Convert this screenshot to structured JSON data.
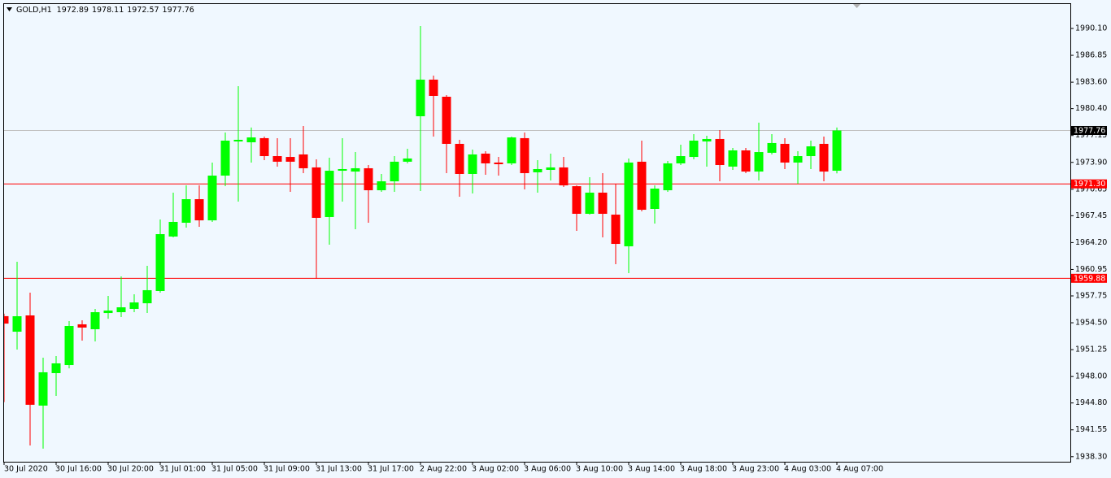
{
  "chart_data": {
    "type": "candlestick",
    "symbol": "GOLD,H1",
    "header_values": [
      1972.89,
      1978.11,
      1972.57,
      1977.76
    ],
    "categories": [
      "30 Jul 2020",
      null,
      null,
      null,
      "30 Jul 16:00",
      null,
      null,
      null,
      "30 Jul 20:00",
      null,
      null,
      null,
      "31 Jul 01:00",
      null,
      null,
      null,
      "31 Jul 05:00",
      null,
      null,
      null,
      "31 Jul 09:00",
      null,
      null,
      null,
      "31 Jul 13:00",
      null,
      null,
      null,
      "31 Jul 17:00",
      null,
      null,
      null,
      "2 Aug 22:00",
      null,
      null,
      null,
      "3 Aug 02:00",
      null,
      null,
      null,
      "3 Aug 06:00",
      null,
      null,
      null,
      "3 Aug 10:00",
      null,
      null,
      null,
      "3 Aug 14:00",
      null,
      null,
      null,
      "3 Aug 18:00",
      null,
      null,
      null,
      "3 Aug 23:00",
      null,
      null,
      null,
      "4 Aug 03:00",
      null,
      null,
      null,
      "4 Aug 07:00"
    ],
    "open": [
      1955.3,
      1953.42,
      1955.39,
      1944.48,
      1948.41,
      1949.39,
      1954.31,
      1953.72,
      1955.68,
      1955.78,
      1956.18,
      1956.86,
      1958.34,
      1964.93,
      1966.6,
      1969.45,
      1966.89,
      1972.3,
      1976.43,
      1976.33,
      1976.83,
      1974.66,
      1974.56,
      1974.86,
      1973.29,
      1967.29,
      1972.89,
      1972.79,
      1973.19,
      1970.53,
      1971.61,
      1973.98,
      1979.48,
      1983.91,
      1981.84,
      1976.14,
      1972.5,
      1974.96,
      1973.88,
      1973.78,
      1976.83,
      1972.7,
      1972.99,
      1973.29,
      1971.02,
      1967.68,
      1970.24,
      1967.58,
      1963.75,
      1973.98,
      1968.27,
      1970.53,
      1973.78,
      1974.56,
      1976.43,
      1976.73,
      1973.39,
      1975.35,
      1972.79,
      1975.06,
      1976.14,
      1973.88,
      1974.66,
      1976.14,
      1972.89
    ],
    "high": [
      1955.6,
      1961.88,
      1958.14,
      1950.28,
      1950.47,
      1954.7,
      1954.8,
      1956.18,
      1957.75,
      1960.11,
      1957.95,
      1961.39,
      1966.99,
      1970.24,
      1971.12,
      1971.12,
      1973.88,
      1977.51,
      1983.12,
      1978.11,
      1977.02,
      1976.83,
      1976.83,
      1978.3,
      1974.27,
      1974.47,
      1976.83,
      1975.15,
      1973.58,
      1972.5,
      1974.66,
      1975.55,
      1990.4,
      1984.4,
      1982.04,
      1976.63,
      1975.45,
      1975.25,
      1974.56,
      1977.02,
      1977.51,
      1974.17,
      1974.96,
      1974.56,
      1971.12,
      1972.11,
      1972.6,
      1971.32,
      1974.37,
      1976.53,
      1971.12,
      1974.07,
      1976.04,
      1977.32,
      1977.12,
      1977.81,
      1975.65,
      1975.65,
      1978.7,
      1977.32,
      1976.83,
      1975.25,
      1976.53,
      1977.02,
      1978.11
    ],
    "low": [
      1944.9,
      1951.26,
      1939.66,
      1939.27,
      1945.66,
      1948.99,
      1952.34,
      1952.24,
      1954.99,
      1955.19,
      1955.78,
      1955.68,
      1958.14,
      1964.83,
      1966.01,
      1966.11,
      1966.7,
      1971.02,
      1969.16,
      1973.88,
      1974.17,
      1973.39,
      1970.34,
      1972.6,
      1959.82,
      1963.94,
      1969.16,
      1965.81,
      1966.6,
      1970.34,
      1970.34,
      1973.78,
      1970.44,
      1977.02,
      1972.6,
      1969.75,
      1970.14,
      1972.4,
      1972.3,
      1973.58,
      1970.63,
      1970.24,
      1971.71,
      1970.93,
      1965.62,
      1967.58,
      1964.83,
      1961.58,
      1960.5,
      1967.98,
      1966.5,
      1970.34,
      1973.58,
      1974.27,
      1973.39,
      1971.61,
      1972.99,
      1972.6,
      1971.71,
      1974.86,
      1973.09,
      1971.32,
      1973.09,
      1971.61,
      1972.57
    ],
    "close": [
      1954.4,
      1955.29,
      1944.58,
      1948.51,
      1949.59,
      1954.11,
      1953.92,
      1955.78,
      1955.98,
      1956.37,
      1956.96,
      1958.44,
      1965.22,
      1966.7,
      1969.45,
      1966.89,
      1972.3,
      1976.53,
      1976.63,
      1976.92,
      1974.66,
      1973.98,
      1973.98,
      1973.19,
      1967.19,
      1972.89,
      1973.09,
      1973.19,
      1970.53,
      1971.61,
      1973.98,
      1974.37,
      1983.91,
      1981.94,
      1976.14,
      1972.5,
      1974.86,
      1973.78,
      1973.68,
      1976.92,
      1972.6,
      1973.09,
      1973.29,
      1971.12,
      1967.68,
      1970.24,
      1967.68,
      1964.04,
      1973.88,
      1968.17,
      1970.73,
      1973.78,
      1974.66,
      1976.53,
      1976.73,
      1973.58,
      1975.35,
      1972.79,
      1975.15,
      1976.24,
      1973.88,
      1974.66,
      1975.84,
      1972.79,
      1977.76
    ],
    "up_color": "#00ff00",
    "down_color": "#ff0000",
    "ylim": [
      1937.69,
      1993.05
    ],
    "yticks": [
      {
        "value": 1990.1,
        "label": "1990.10"
      },
      1986.85,
      {
        "value": 1983.6,
        "label": "1983.60"
      },
      {
        "value": 1980.4,
        "label": "1980.40"
      },
      1977.15,
      {
        "value": 1973.9,
        "label": "1973.90"
      },
      1970.65,
      1967.45,
      {
        "value": 1964.2,
        "label": "1964.20"
      },
      1960.95,
      1957.75,
      {
        "value": 1954.5,
        "label": "1954.50"
      },
      1951.25,
      {
        "value": 1948,
        "label": "1948.00"
      },
      {
        "value": 1944.8,
        "label": "1944.80"
      },
      1941.55,
      {
        "value": 1938.3,
        "label": "1938.30"
      }
    ],
    "grid": false,
    "hlines": [
      {
        "value": 1971.3,
        "label": "1971.30",
        "color": "#ff0000"
      },
      {
        "value": 1959.88,
        "color": "#ff0000"
      }
    ],
    "last_price": 1977.76,
    "last_price_color": "#c0c0c0"
  }
}
